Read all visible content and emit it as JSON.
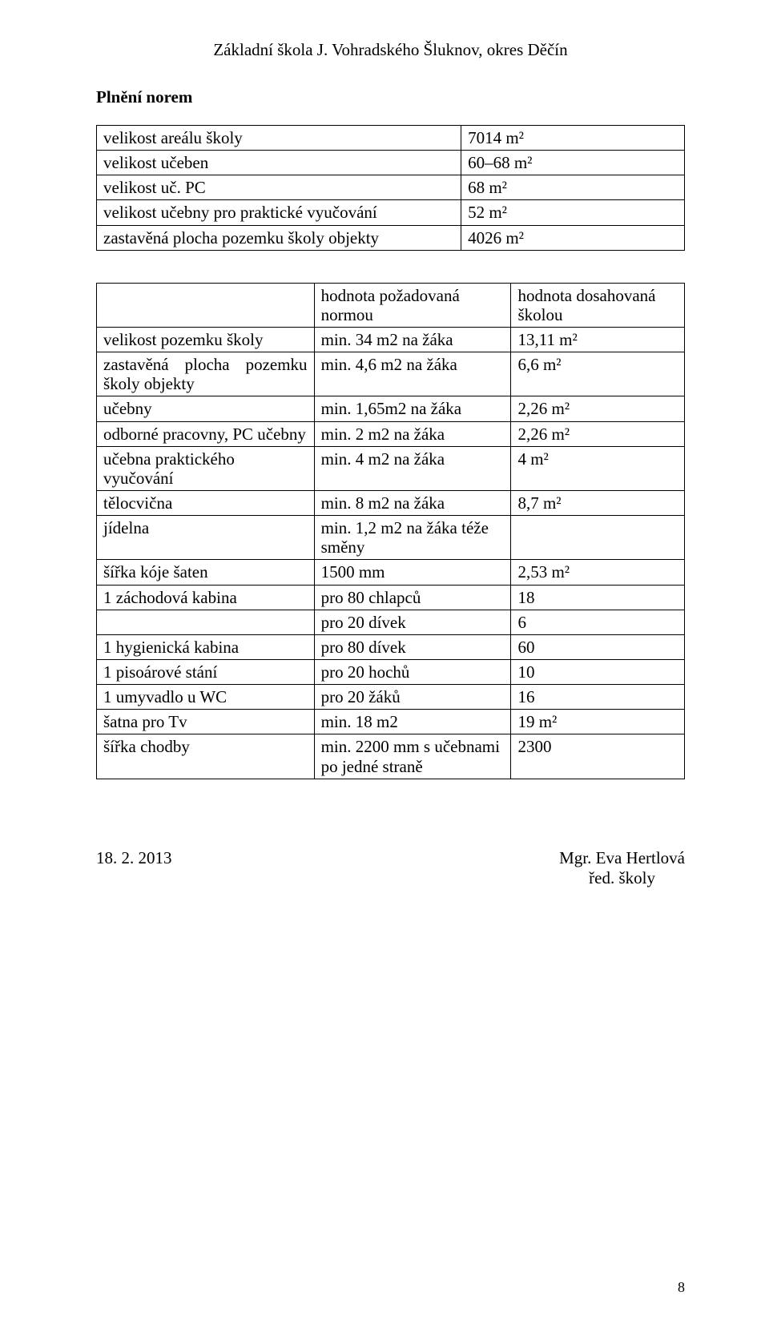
{
  "header": {
    "school_name": "Základní škola J. Vohradského Šluknov, okres Děčín"
  },
  "section": {
    "title": "Plnění norem"
  },
  "table1": {
    "rows": [
      {
        "label": "velikost areálu školy",
        "value": "7014 m²"
      },
      {
        "label": "velikost učeben",
        "value": "60–68 m²"
      },
      {
        "label": "velikost uč. PC",
        "value": "68 m²"
      },
      {
        "label": "velikost učebny pro praktické vyučování",
        "value": "52 m²"
      },
      {
        "label": "zastavěná plocha pozemku školy objekty",
        "value": "4026 m²"
      }
    ]
  },
  "table2": {
    "header": {
      "c1": "",
      "c2": "hodnota požadovaná normou",
      "c3": "hodnota dosahovaná školou"
    },
    "rows": [
      {
        "c1": "velikost pozemku školy",
        "c2": "min. 34 m2 na žáka",
        "c3": "13,11 m²"
      },
      {
        "c1_a": "zastavěná",
        "c1_b": "plocha",
        "c1_c": "pozemku",
        "c1_line2": "školy objekty",
        "c2": "min. 4,6 m2 na žáka",
        "c3": "6,6 m²",
        "justify": true
      },
      {
        "c1": "učebny",
        "c2": "min. 1,65m2 na žáka",
        "c3": "2,26 m²"
      },
      {
        "c1": "odborné pracovny, PC učebny",
        "c2": "min. 2 m2 na žáka",
        "c3": "2,26 m²"
      },
      {
        "c1": "učebna praktického vyučování",
        "c2": "min. 4 m2 na žáka",
        "c3": "4 m²"
      },
      {
        "c1": "tělocvična",
        "c2": "min. 8 m2 na žáka",
        "c3": "8,7 m²"
      },
      {
        "c1": "jídelna",
        "c2": "min. 1,2 m2 na žáka téže směny",
        "c3": ""
      },
      {
        "c1": "šířka kóje šaten",
        "c2": "1500 mm",
        "c3": "2,53 m²"
      },
      {
        "c1": "1 záchodová kabina",
        "c2": "pro 80 chlapců",
        "c3": "18"
      },
      {
        "c1": "",
        "c2": "pro 20 dívek",
        "c3": "6"
      },
      {
        "c1": "1 hygienická kabina",
        "c2": "pro 80 dívek",
        "c3": "60"
      },
      {
        "c1": "1 pisoárové stání",
        "c2": "pro 20 hochů",
        "c3": "10"
      },
      {
        "c1": "1 umyvadlo u WC",
        "c2": "pro 20 žáků",
        "c3": "16"
      },
      {
        "c1": "šatna pro Tv",
        "c2": "min. 18 m2",
        "c3": "19 m²"
      },
      {
        "c1": "šířka chodby",
        "c2": "min. 2200 mm s učebnami po jedné straně",
        "c3": "2300"
      }
    ]
  },
  "signature": {
    "date": "18. 2. 2013",
    "name": "Mgr. Eva Hertlová",
    "role": "řed. školy"
  },
  "page_number": "8"
}
